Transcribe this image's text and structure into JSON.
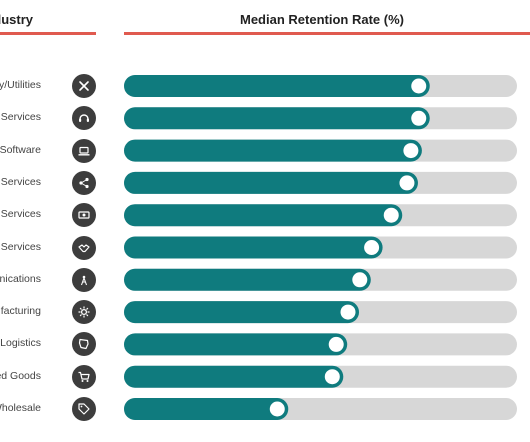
{
  "header": {
    "left_label": "Industry",
    "right_label": "Median Retention Rate (%)"
  },
  "colors": {
    "bar": "#0f7b7e",
    "track": "#d7d7d7",
    "accent_rule": "#e05a4f",
    "icon_bg": "#3d3d3d"
  },
  "chart_data": {
    "type": "bar",
    "orientation": "horizontal",
    "categories": [
      "y/Utilities",
      "Services",
      "Software",
      "Services",
      "Services",
      "Services",
      "nications",
      "ufacturing",
      "Logistics",
      "ed Goods",
      "Wholesale"
    ],
    "icons": [
      "tools-icon",
      "headset-icon",
      "laptop-icon",
      "share-icon",
      "cash-icon",
      "handshake-icon",
      "antenna-icon",
      "gear-icon",
      "map-icon",
      "cart-icon",
      "tag-icon"
    ],
    "values": [
      75,
      75,
      73,
      72,
      68,
      63,
      60,
      57,
      54,
      53,
      39
    ],
    "xlim": [
      0,
      100
    ],
    "grid": false,
    "xlabel": "",
    "ylabel": ""
  }
}
